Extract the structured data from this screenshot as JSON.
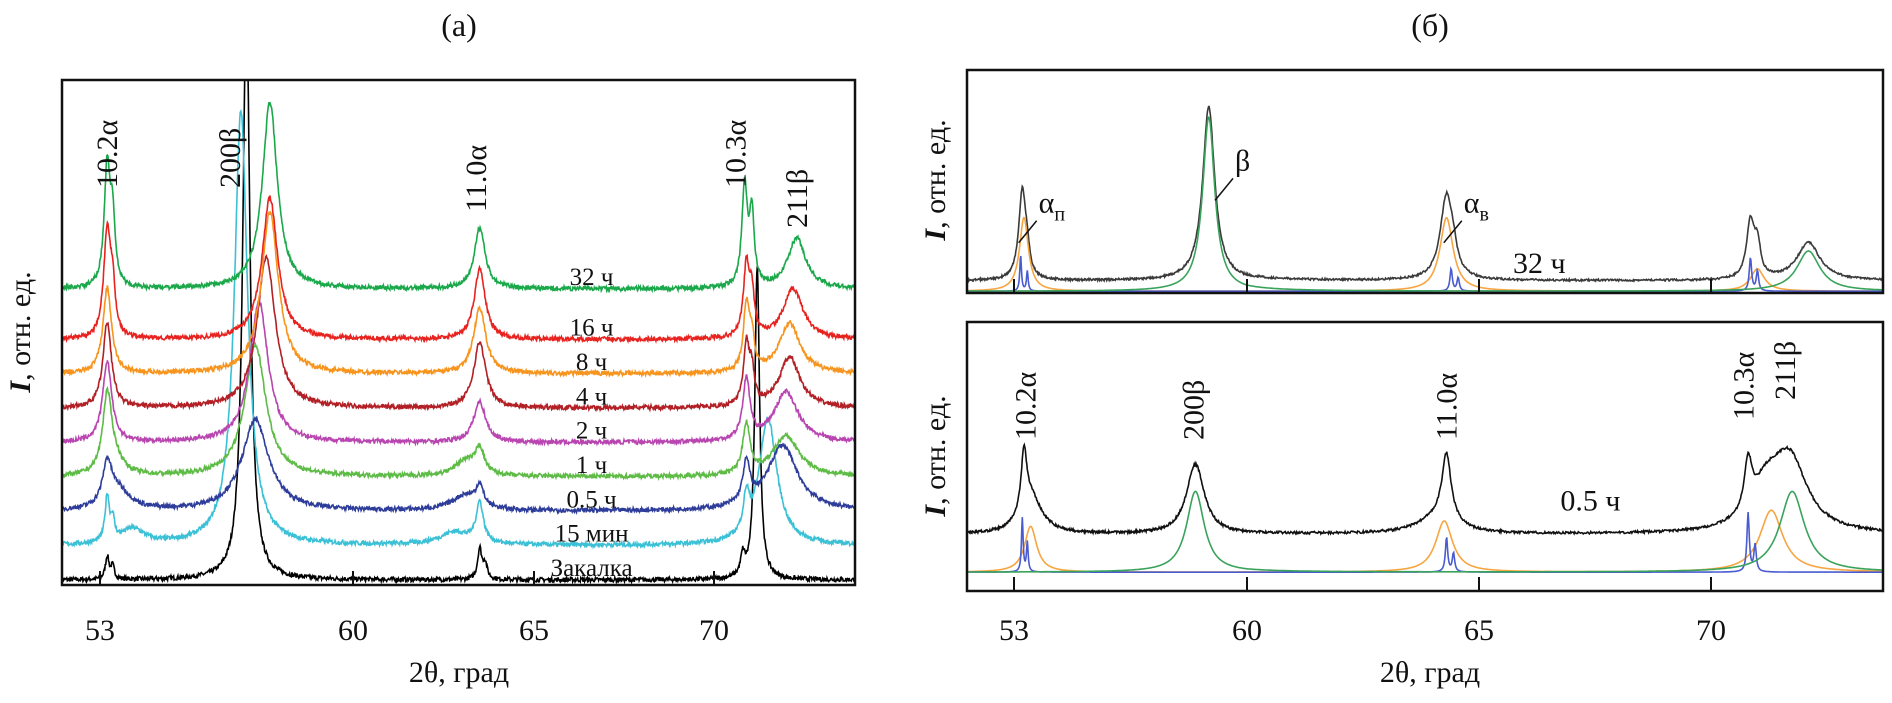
{
  "chart_data": [
    {
      "type": "line",
      "title": "(а)",
      "xlabel": "2θ, град",
      "ylabel_symbol": "I",
      "ylabel_rest": ", отн. ед.",
      "x_ticks": [
        53,
        60,
        65,
        70
      ],
      "xlim": [
        51.9,
        73.9
      ],
      "ylim": [
        0,
        100
      ],
      "x_scale": "linear",
      "grid": false,
      "peak_labels": [
        {
          "text": "10.2α",
          "x": 53.2
        },
        {
          "text": "200β",
          "x": 56.6
        },
        {
          "text": "11.0α",
          "x": 63.4
        },
        {
          "text": "10.3α",
          "x": 70.6
        },
        {
          "text": "211β",
          "x": 72.3
        }
      ],
      "series": [
        {
          "name": "Закалка",
          "color": "#000000",
          "baseline": 1.0,
          "peaks": [
            [
              53.2,
              4.5,
              0.06
            ],
            [
              53.35,
              2.5,
              0.06
            ],
            [
              57.05,
              115,
              0.12
            ],
            [
              63.5,
              6,
              0.07
            ],
            [
              63.65,
              3,
              0.07
            ],
            [
              70.8,
              4,
              0.07
            ],
            [
              71.2,
              62,
              0.08
            ]
          ]
        },
        {
          "name": "15 мин",
          "color": "#3cc0d6",
          "baseline": 7.8,
          "peaks": [
            [
              53.2,
              9,
              0.07
            ],
            [
              53.35,
              4,
              0.06
            ],
            [
              53.9,
              3,
              0.4
            ],
            [
              56.9,
              86,
              0.22
            ],
            [
              63.5,
              8,
              0.12
            ],
            [
              62.8,
              2.5,
              0.5
            ],
            [
              70.9,
              7,
              0.1
            ],
            [
              71.5,
              25,
              0.3
            ]
          ]
        },
        {
          "name": "0.5 ч",
          "color": "#2e3d9a",
          "baseline": 14.6,
          "peaks": [
            [
              53.2,
              8,
              0.15
            ],
            [
              53.5,
              4,
              0.4
            ],
            [
              57.3,
              18,
              0.45
            ],
            [
              63.5,
              4,
              0.12
            ],
            [
              63.1,
              3,
              0.45
            ],
            [
              70.9,
              8,
              0.12
            ],
            [
              71.9,
              13,
              0.5
            ]
          ]
        },
        {
          "name": "1 ч",
          "color": "#5dbb46",
          "baseline": 21.4,
          "peaks": [
            [
              53.2,
              15,
              0.15
            ],
            [
              53.4,
              3,
              0.3
            ],
            [
              57.3,
              26,
              0.35
            ],
            [
              63.5,
              5,
              0.15
            ],
            [
              63.1,
              3,
              0.35
            ],
            [
              70.9,
              10,
              0.12
            ],
            [
              72.0,
              8,
              0.45
            ]
          ]
        },
        {
          "name": "2 ч",
          "color": "#b845b0",
          "baseline": 28.2,
          "peaks": [
            [
              53.2,
              16,
              0.15
            ],
            [
              57.4,
              28,
              0.3
            ],
            [
              63.5,
              8,
              0.2
            ],
            [
              70.9,
              12,
              0.12
            ],
            [
              72.0,
              10,
              0.4
            ]
          ]
        },
        {
          "name": "4 ч",
          "color": "#b22026",
          "baseline": 35.0,
          "peaks": [
            [
              53.2,
              17,
              0.14
            ],
            [
              57.6,
              30,
              0.3
            ],
            [
              63.5,
              13,
              0.2
            ],
            [
              70.9,
              12,
              0.1
            ],
            [
              71.05,
              6,
              0.08
            ],
            [
              72.1,
              10,
              0.35
            ]
          ]
        },
        {
          "name": "8 ч",
          "color": "#f7941d",
          "baseline": 41.8,
          "peaks": [
            [
              53.2,
              17,
              0.14
            ],
            [
              57.7,
              32,
              0.28
            ],
            [
              63.5,
              13,
              0.2
            ],
            [
              70.9,
              13,
              0.1
            ],
            [
              71.05,
              6,
              0.08
            ],
            [
              72.1,
              10,
              0.35
            ]
          ]
        },
        {
          "name": "16 ч",
          "color": "#e8231f",
          "baseline": 48.6,
          "peaks": [
            [
              53.2,
              21,
              0.12
            ],
            [
              53.35,
              8,
              0.08
            ],
            [
              57.7,
              28,
              0.26
            ],
            [
              63.5,
              14,
              0.18
            ],
            [
              70.9,
              14,
              0.1
            ],
            [
              71.05,
              8,
              0.08
            ],
            [
              72.2,
              10,
              0.33
            ]
          ]
        },
        {
          "name": "32 ч",
          "color": "#1aa84a",
          "baseline": 58.6,
          "peaks": [
            [
              53.2,
              24,
              0.1
            ],
            [
              53.35,
              12,
              0.08
            ],
            [
              57.7,
              37,
              0.25
            ],
            [
              63.5,
              12,
              0.18
            ],
            [
              70.85,
              20,
              0.09
            ],
            [
              71.05,
              14,
              0.08
            ],
            [
              72.3,
              10,
              0.3
            ]
          ]
        }
      ]
    },
    {
      "type": "line",
      "title": "(б)",
      "ylabel_symbol": "I",
      "ylabel_rest": ", отн. ед.",
      "x_ticks": [
        53,
        60,
        65,
        70
      ],
      "xlim": [
        51.6,
        73.7
      ],
      "ylim": [
        0,
        100
      ],
      "x_scale": "tick-labels equally spaced",
      "grid": false,
      "panel_label": "32 ч",
      "panel_label_x": 66.3,
      "annotations": [
        {
          "text": "α",
          "sub": "п",
          "x": 53.5,
          "y": 36
        },
        {
          "text": "β",
          "x": 59.4,
          "y": 55
        },
        {
          "text": "α",
          "sub": "в",
          "x": 64.5,
          "y": 36
        }
      ],
      "series": [
        {
          "name": "",
          "color": "#3a3a3a",
          "baseline": 5.5,
          "peaks": [
            [
              53.25,
              40,
              0.13
            ],
            [
              53.4,
              8,
              0.08
            ],
            [
              58.85,
              78,
              0.22
            ],
            [
              64.3,
              38,
              0.16
            ],
            [
              64.45,
              6,
              0.08
            ],
            [
              70.85,
              25,
              0.1
            ],
            [
              71.0,
              14,
              0.08
            ],
            [
              72.1,
              17,
              0.3
            ]
          ]
        },
        {
          "name": "",
          "color": "#f7a541",
          "baseline": 0.8,
          "peaks": [
            [
              53.3,
              33,
              0.16
            ],
            [
              64.3,
              33,
              0.17
            ],
            [
              71.0,
              10,
              0.18
            ]
          ]
        },
        {
          "name": "",
          "color": "#4a5bd0",
          "baseline": 0.8,
          "peaks": [
            [
              53.2,
              16,
              0.03
            ],
            [
              53.4,
              9,
              0.03
            ],
            [
              64.4,
              10,
              0.03
            ],
            [
              64.55,
              6,
              0.03
            ],
            [
              70.85,
              15,
              0.03
            ],
            [
              71.0,
              9,
              0.03
            ]
          ]
        },
        {
          "name": "",
          "color": "#3aa35b",
          "baseline": 0.8,
          "peaks": [
            [
              58.85,
              78,
              0.22
            ],
            [
              72.1,
              18,
              0.3
            ]
          ]
        }
      ]
    },
    {
      "type": "line",
      "xlabel": "2θ, град",
      "ylabel_symbol": "I",
      "ylabel_rest": ", отн. ед.",
      "x_ticks": [
        53,
        60,
        65,
        70
      ],
      "xlim": [
        51.6,
        73.7
      ],
      "ylim": [
        0,
        100
      ],
      "x_scale": "tick-labels equally spaced",
      "grid": false,
      "panel_label": "0.5 ч",
      "panel_label_x": 67.4,
      "peak_labels": [
        {
          "text": "10.2α",
          "x": 53.35
        },
        {
          "text": "200β",
          "x": 58.4
        },
        {
          "text": "11.0α",
          "x": 64.3
        },
        {
          "text": "10.3α",
          "x": 70.7
        },
        {
          "text": "211β",
          "x": 71.6
        }
      ],
      "series": [
        {
          "name": "",
          "color": "#111111",
          "baseline": 21,
          "peaks": [
            [
              53.3,
              22,
              0.1
            ],
            [
              53.5,
              14,
              0.4
            ],
            [
              58.45,
              26,
              0.32
            ],
            [
              64.3,
              25,
              0.12
            ],
            [
              64.1,
              6,
              0.5
            ],
            [
              70.8,
              18,
              0.1
            ],
            [
              71.2,
              14,
              0.4
            ],
            [
              71.7,
              26,
              0.45
            ]
          ]
        },
        {
          "name": "",
          "color": "#f7a541",
          "baseline": 7,
          "peaks": [
            [
              53.5,
              17,
              0.22
            ],
            [
              64.25,
              19,
              0.22
            ],
            [
              71.3,
              23,
              0.3
            ]
          ]
        },
        {
          "name": "",
          "color": "#4a5bd0",
          "baseline": 7,
          "peaks": [
            [
              53.25,
              20,
              0.03
            ],
            [
              53.4,
              11,
              0.03
            ],
            [
              64.3,
              13,
              0.03
            ],
            [
              64.45,
              7,
              0.03
            ],
            [
              70.8,
              22,
              0.03
            ],
            [
              70.95,
              10,
              0.03
            ]
          ]
        },
        {
          "name": "",
          "color": "#3aa35b",
          "baseline": 7,
          "peaks": [
            [
              58.45,
              30,
              0.32
            ],
            [
              71.75,
              30,
              0.32
            ]
          ]
        }
      ]
    }
  ]
}
